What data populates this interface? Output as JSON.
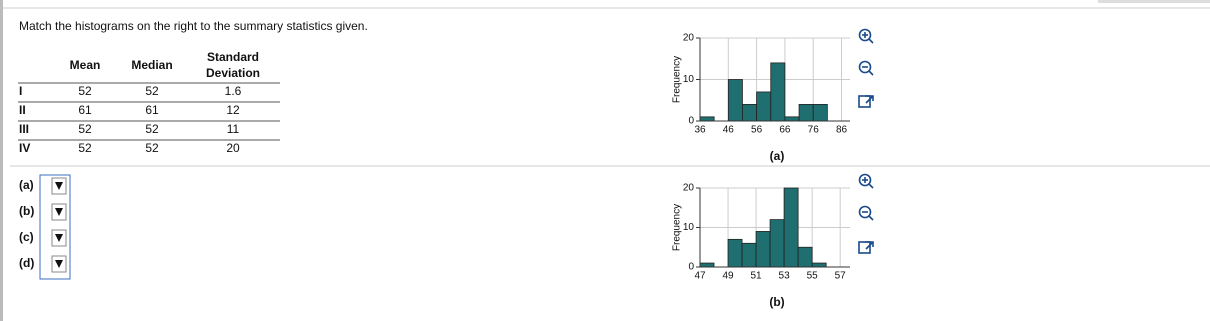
{
  "question": "Match the histograms on the right to the summary statistics given.",
  "table": {
    "header": [
      "Mean",
      "Median",
      "Standard Deviation"
    ],
    "rows": [
      {
        "label": "I",
        "values": [
          52,
          52,
          1.6
        ]
      },
      {
        "label": "II",
        "values": [
          61,
          61,
          12
        ]
      },
      {
        "label": "III",
        "values": [
          52,
          52,
          11
        ]
      },
      {
        "label": "IV",
        "values": [
          52,
          52,
          20
        ]
      }
    ]
  },
  "answers": [
    "(a)",
    "(b)",
    "(c)",
    "(d)"
  ],
  "chart_data": [
    {
      "type": "histogram",
      "xlabel": "(a)",
      "ylabel": "Frequency",
      "color": "#1f6e70",
      "bins": [
        36,
        41,
        46,
        51,
        56,
        61,
        66,
        71,
        76,
        81,
        86
      ],
      "values": [
        1,
        0,
        10,
        4,
        7,
        14,
        1,
        4,
        4,
        0
      ],
      "xlim": [
        36,
        89
      ],
      "ylim": [
        0,
        20
      ],
      "xticks": [
        36,
        46,
        56,
        66,
        76,
        86
      ],
      "yticks": [
        0,
        10,
        20
      ],
      "grid": true
    },
    {
      "type": "histogram",
      "xlabel": "(b)",
      "ylabel": "Frequency",
      "color": "#1f6e70",
      "bins": [
        47,
        48,
        49,
        50,
        51,
        52,
        53,
        54,
        55,
        56,
        57
      ],
      "values": [
        1,
        0,
        7,
        6,
        9,
        12,
        20,
        5,
        1,
        0
      ],
      "xlim": [
        47,
        57.7
      ],
      "ylim": [
        0,
        20
      ],
      "xticks": [
        47,
        49,
        51,
        53,
        55,
        57
      ],
      "yticks": [
        0,
        10,
        20
      ],
      "grid": true
    }
  ]
}
